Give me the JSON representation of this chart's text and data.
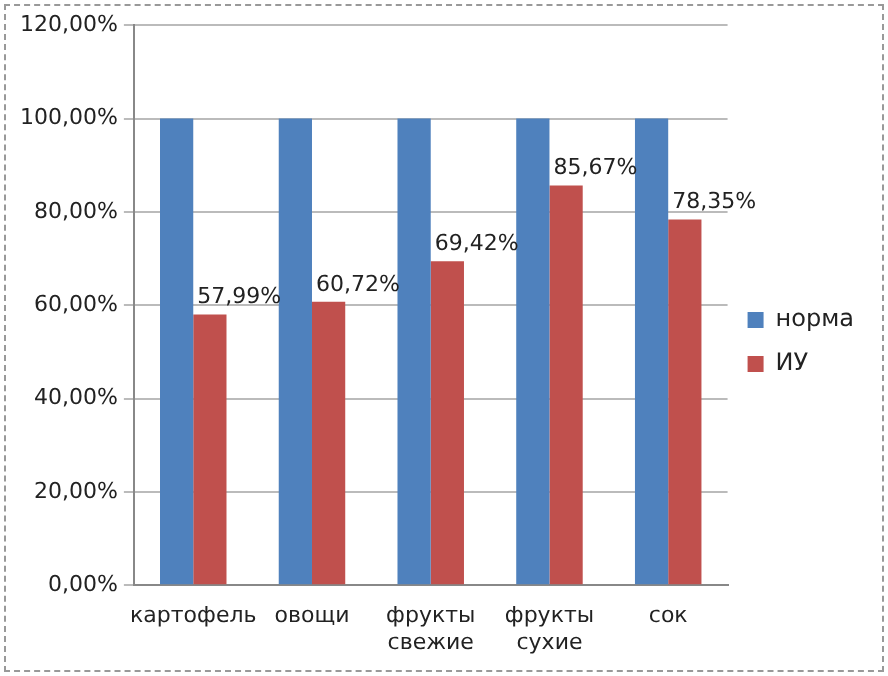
{
  "chart_data": {
    "type": "bar",
    "categories": [
      "картофель",
      "овощи",
      "фрукты свежие",
      "фрукты сухие",
      "сок"
    ],
    "series": [
      {
        "name": "норма",
        "color": "#4f81bd",
        "values": [
          100,
          100,
          100,
          100,
          100
        ]
      },
      {
        "name": "ИУ",
        "color": "#c0504d",
        "values": [
          57.99,
          60.72,
          69.42,
          85.67,
          78.35
        ],
        "value_labels": [
          "57,99%",
          "60,72%",
          "69,42%",
          "85,67%",
          "78,35%"
        ]
      }
    ],
    "ylim": [
      0,
      120
    ],
    "yticks": [
      {
        "value": 0,
        "label": "0,00%"
      },
      {
        "value": 20,
        "label": "20,00%"
      },
      {
        "value": 40,
        "label": "40,00%"
      },
      {
        "value": 60,
        "label": "60,00%"
      },
      {
        "value": 80,
        "label": "80,00%"
      },
      {
        "value": 100,
        "label": "100,00%"
      },
      {
        "value": 120,
        "label": "120,00%"
      }
    ],
    "grid": "y",
    "legend": "right"
  }
}
